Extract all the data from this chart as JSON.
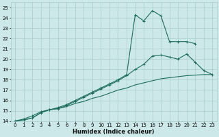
{
  "xlabel": "Humidex (Indice chaleur)",
  "background_color": "#cde8e8",
  "grid_color": "#a8cccc",
  "line_color": "#1a6b5a",
  "xlim": [
    -0.5,
    23.5
  ],
  "ylim": [
    14,
    25.5
  ],
  "xticks": [
    0,
    1,
    2,
    3,
    4,
    5,
    6,
    7,
    8,
    9,
    10,
    11,
    12,
    13,
    14,
    15,
    16,
    17,
    18,
    19,
    20,
    21,
    22,
    23
  ],
  "yticks": [
    14,
    15,
    16,
    17,
    18,
    19,
    20,
    21,
    22,
    23,
    24,
    25
  ],
  "line1_x": [
    0,
    1,
    2,
    3,
    4,
    5,
    6,
    7,
    8,
    9,
    10,
    11,
    12,
    13,
    14,
    15,
    16,
    17,
    18,
    19,
    20,
    21,
    22,
    23
  ],
  "line1_y": [
    14.0,
    14.1,
    14.3,
    14.8,
    15.1,
    15.2,
    15.4,
    15.7,
    15.9,
    16.2,
    16.4,
    16.7,
    17.0,
    17.2,
    17.5,
    17.7,
    17.9,
    18.1,
    18.2,
    18.3,
    18.4,
    18.45,
    18.5,
    18.5
  ],
  "line2_x": [
    0,
    1,
    2,
    3,
    4,
    5,
    6,
    7,
    8,
    9,
    10,
    11,
    12,
    13,
    14,
    15,
    16,
    17,
    18,
    19,
    20,
    21,
    22,
    23
  ],
  "line2_y": [
    14.0,
    14.1,
    14.3,
    14.8,
    15.1,
    15.2,
    15.5,
    15.9,
    16.3,
    16.7,
    17.1,
    17.5,
    17.9,
    18.4,
    19.0,
    19.5,
    20.3,
    20.4,
    20.2,
    20.0,
    20.5,
    19.7,
    18.9,
    18.5
  ],
  "line3_x": [
    0,
    1,
    2,
    3,
    4,
    5,
    6,
    7,
    8,
    9,
    10,
    11,
    12,
    13,
    14,
    15,
    16,
    17,
    18,
    19,
    20,
    21
  ],
  "line3_y": [
    14.0,
    14.2,
    14.5,
    14.9,
    15.1,
    15.3,
    15.6,
    16.0,
    16.4,
    16.8,
    17.2,
    17.6,
    18.0,
    18.5,
    24.3,
    23.7,
    24.7,
    24.2,
    21.7,
    21.7,
    21.7,
    21.5
  ],
  "xlabel_fontsize": 6.0,
  "tick_fontsize": 5.0
}
